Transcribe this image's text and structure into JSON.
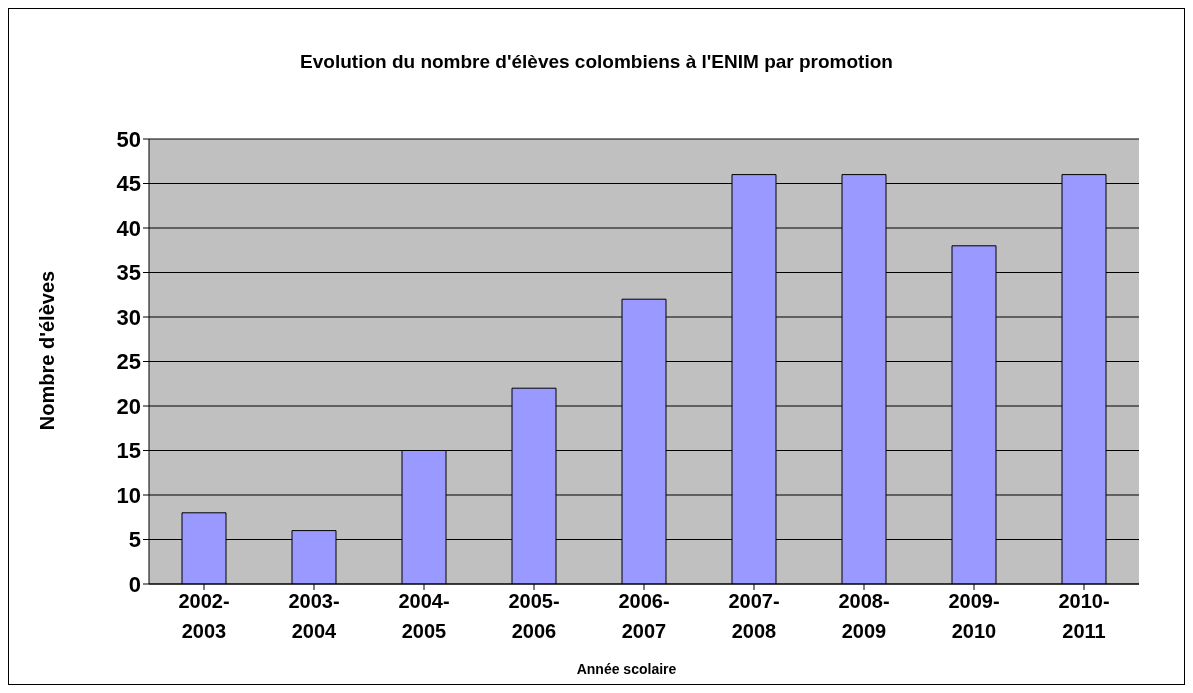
{
  "chart_data": {
    "type": "bar",
    "title": "Evolution du nombre d'élèves colombiens à l'ENIM par promotion",
    "xlabel": "Année scolaire",
    "ylabel": "Nombre d'élèves",
    "categories": [
      "2002-2003",
      "2003-2004",
      "2004-2005",
      "2005-2006",
      "2006-2007",
      "2007-2008",
      "2008-2009",
      "2009-2010",
      "2010-2011"
    ],
    "values": [
      8,
      6,
      15,
      22,
      32,
      46,
      46,
      38,
      46
    ],
    "color": "#9999ff",
    "ylim": [
      0,
      50
    ],
    "yticks": [
      0,
      5,
      10,
      15,
      20,
      25,
      30,
      35,
      40,
      45,
      50
    ],
    "grid": "y"
  }
}
